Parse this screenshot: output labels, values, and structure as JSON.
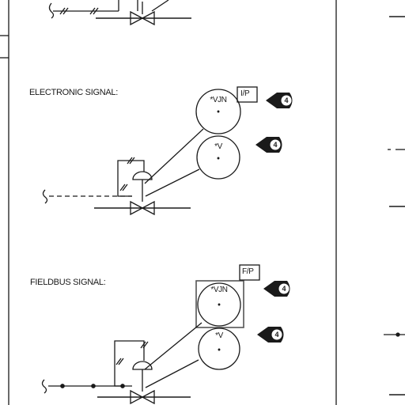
{
  "section_electronic": {
    "heading": "ELECTRONIC SIGNAL:"
  },
  "section_fieldbus": {
    "heading": "FIELDBUS SIGNAL:"
  },
  "instruments": {
    "electronic_upper_tag": "*VJN",
    "electronic_lower_tag": "*V",
    "fieldbus_upper_tag": "*VJN",
    "fieldbus_lower_tag": "*V"
  },
  "function_boxes": {
    "electronic": "I/P",
    "fieldbus": "F/P"
  },
  "notes": {
    "n1": "4",
    "n2": "4",
    "n3": "4",
    "n4": "4"
  },
  "colors": {
    "line": "#1a1a1a",
    "background": "#ffffff",
    "fieldbus_box": "#555555"
  }
}
